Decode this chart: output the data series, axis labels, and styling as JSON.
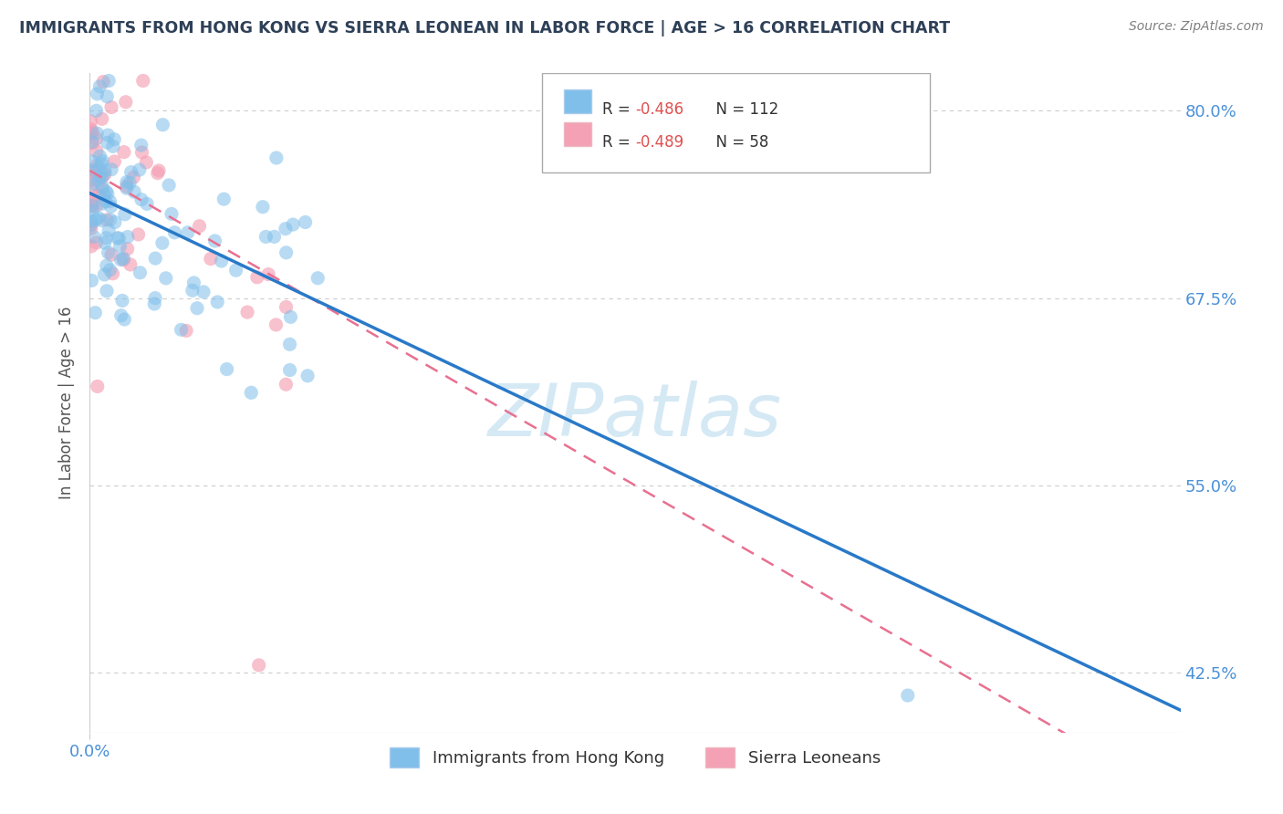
{
  "title": "IMMIGRANTS FROM HONG KONG VS SIERRA LEONEAN IN LABOR FORCE | AGE > 16 CORRELATION CHART",
  "source": "Source: ZipAtlas.com",
  "ylabel": "In Labor Force | Age > 16",
  "watermark": "ZIPatlas",
  "legend_labels_bottom": [
    "Immigrants from Hong Kong",
    "Sierra Leoneans"
  ],
  "xmin": 0.0,
  "xmax": 1.0,
  "ymin": 0.385,
  "ymax": 0.825,
  "ytick_vals": [
    0.425,
    0.55,
    0.675,
    0.8
  ],
  "ytick_labels": [
    "42.5%",
    "55.0%",
    "67.5%",
    "80.0%"
  ],
  "title_color": "#2e4057",
  "axis_label_color": "#4a90d9",
  "hk_scatter_color": "#7fbfea",
  "sl_scatter_color": "#f4a0b5",
  "hk_line_color": "#2979c8",
  "sl_line_color": "#e87090",
  "hk_N": 112,
  "sl_N": 58,
  "hk_intercept": 0.745,
  "hk_slope": -0.345,
  "sl_intercept": 0.76,
  "sl_slope": -0.42,
  "background_color": "#ffffff",
  "grid_color": "#cccccc",
  "watermark_color": "#d5e9f5"
}
